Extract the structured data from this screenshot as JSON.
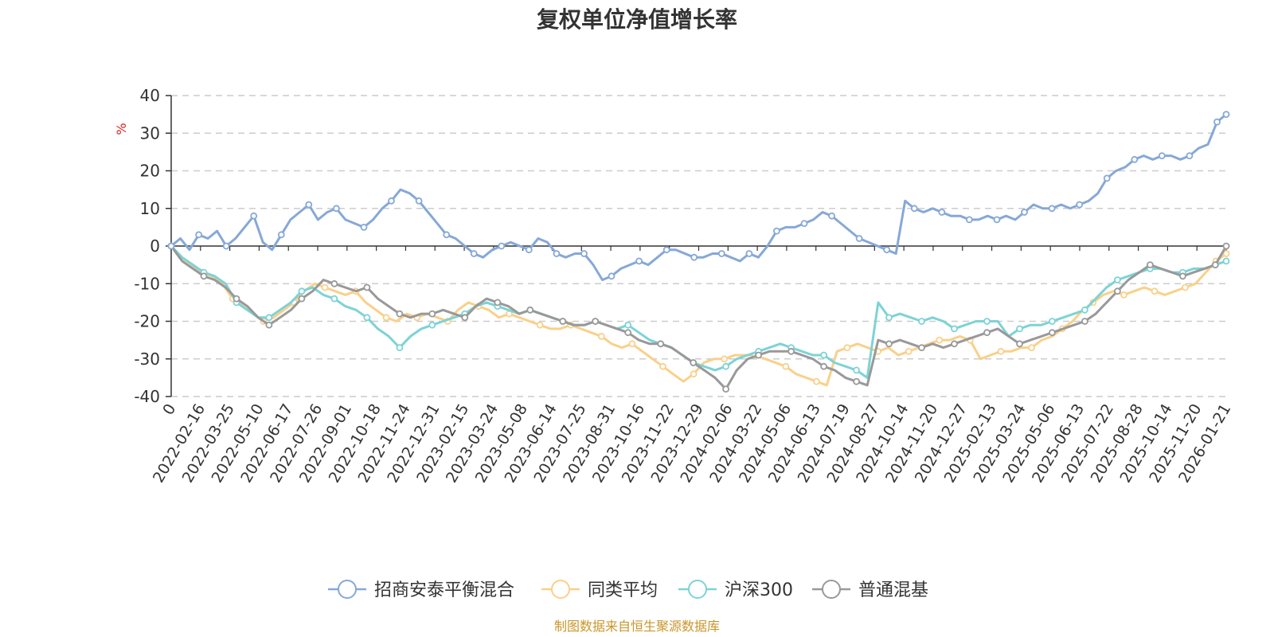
{
  "chart_data": {
    "type": "line",
    "title": "复权单位净值增长率",
    "ylabel": "%",
    "ylim": [
      -40,
      40
    ],
    "yticks": [
      40,
      30,
      20,
      10,
      0,
      -10,
      -20,
      -30,
      -40
    ],
    "grid": true,
    "legend_position": "bottom",
    "x_labels": [
      "0",
      "2022-02-16",
      "2022-03-25",
      "2022-05-10",
      "2022-06-17",
      "2022-07-26",
      "2022-09-01",
      "2022-10-18",
      "2022-11-24",
      "2022-12-31",
      "2023-02-15",
      "2023-03-24",
      "2023-05-08",
      "2023-06-14",
      "2023-07-25",
      "2023-08-31",
      "2023-10-16",
      "2023-11-22",
      "2023-12-29",
      "2024-02-06",
      "2024-03-22",
      "2024-05-06",
      "2024-06-13",
      "2024-07-19",
      "2024-08-27",
      "2024-10-14",
      "2024-11-20",
      "2024-12-27",
      "2025-02-13",
      "2025-03-24",
      "2025-05-06",
      "2025-06-13",
      "2025-07-22",
      "2025-08-28",
      "2025-10-14",
      "2025-11-20",
      "2026-01-21"
    ],
    "series": [
      {
        "name": "招商安泰平衡混合",
        "color": "#86a8d8",
        "values": [
          0,
          2,
          -1,
          3,
          2,
          4,
          0,
          2,
          5,
          8,
          1,
          -1,
          3,
          7,
          9,
          11,
          7,
          9,
          10,
          7,
          6,
          5,
          7,
          10,
          12,
          15,
          14,
          12,
          9,
          6,
          3,
          2,
          0,
          -2,
          -3,
          -1,
          0,
          1,
          0,
          -1,
          2,
          1,
          -2,
          -3,
          -2,
          -2,
          -5,
          -9,
          -8,
          -6,
          -5,
          -4,
          -5,
          -3,
          -1,
          -1,
          -2,
          -3,
          -3,
          -2,
          -2,
          -3,
          -4,
          -2,
          -3,
          0,
          4,
          5,
          5,
          6,
          7,
          9,
          8,
          6,
          4,
          2,
          1,
          0,
          -1,
          -2,
          12,
          10,
          9,
          10,
          9,
          8,
          8,
          7,
          7,
          8,
          7,
          8,
          7,
          9,
          11,
          10,
          10,
          11,
          10,
          11,
          12,
          14,
          18,
          20,
          21,
          23,
          24,
          23,
          24,
          24,
          23,
          24,
          26,
          27,
          33,
          35
        ]
      },
      {
        "name": "同类平均",
        "color": "#f9d08a",
        "values": [
          0,
          -3,
          -5,
          -7,
          -8,
          -10,
          -14,
          -16,
          -18,
          -20,
          -19,
          -17,
          -15,
          -12,
          -10,
          -11,
          -12,
          -13,
          -12,
          -15,
          -17,
          -19,
          -20,
          -18,
          -19,
          -18,
          -19,
          -20,
          -17,
          -15,
          -16,
          -17,
          -19,
          -18,
          -19,
          -20,
          -21,
          -22,
          -22,
          -21,
          -22,
          -23,
          -24,
          -26,
          -27,
          -26,
          -28,
          -30,
          -32,
          -34,
          -36,
          -34,
          -31,
          -30,
          -30,
          -29,
          -29,
          -29,
          -30,
          -31,
          -32,
          -34,
          -35,
          -36,
          -37,
          -28,
          -27,
          -26,
          -27,
          -28,
          -27,
          -29,
          -28,
          -27,
          -26,
          -25,
          -25,
          -24,
          -25,
          -30,
          -29,
          -28,
          -28,
          -27,
          -27,
          -25,
          -24,
          -22,
          -20,
          -17,
          -15,
          -13,
          -12,
          -13,
          -12,
          -11,
          -12,
          -13,
          -12,
          -11,
          -10,
          -7,
          -4,
          -2
        ]
      },
      {
        "name": "沪深300",
        "color": "#7dd3d6",
        "values": [
          0,
          -3,
          -5,
          -7,
          -8,
          -10,
          -15,
          -17,
          -19,
          -19,
          -17,
          -15,
          -12,
          -11,
          -13,
          -14,
          -16,
          -17,
          -19,
          -22,
          -24,
          -27,
          -24,
          -22,
          -21,
          -20,
          -19,
          -18,
          -16,
          -15,
          -16,
          -17,
          -18,
          -17,
          -18,
          -19,
          -20,
          -21,
          -21,
          -20,
          -21,
          -22,
          -21,
          -23,
          -25,
          -26,
          -27,
          -29,
          -31,
          -32,
          -33,
          -32,
          -30,
          -29,
          -28,
          -27,
          -26,
          -27,
          -28,
          -29,
          -29,
          -31,
          -32,
          -33,
          -35,
          -15,
          -19,
          -18,
          -19,
          -20,
          -19,
          -20,
          -22,
          -21,
          -20,
          -20,
          -20,
          -24,
          -22,
          -21,
          -21,
          -20,
          -19,
          -18,
          -17,
          -14,
          -11,
          -9,
          -8,
          -7,
          -6,
          -6,
          -7,
          -7,
          -6,
          -6,
          -5,
          -4
        ]
      },
      {
        "name": "普通混基",
        "color": "#999999",
        "values": [
          0,
          -4,
          -6,
          -8,
          -9,
          -11,
          -14,
          -16,
          -19,
          -21,
          -19,
          -17,
          -14,
          -12,
          -9,
          -10,
          -11,
          -12,
          -11,
          -14,
          -16,
          -18,
          -19,
          -18,
          -18,
          -17,
          -18,
          -19,
          -16,
          -14,
          -15,
          -16,
          -18,
          -17,
          -18,
          -19,
          -20,
          -21,
          -21,
          -20,
          -21,
          -22,
          -23,
          -25,
          -26,
          -26,
          -27,
          -29,
          -31,
          -33,
          -35,
          -38,
          -33,
          -30,
          -29,
          -28,
          -28,
          -28,
          -29,
          -30,
          -32,
          -33,
          -35,
          -36,
          -37,
          -25,
          -26,
          -25,
          -26,
          -27,
          -26,
          -27,
          -26,
          -25,
          -24,
          -23,
          -22,
          -24,
          -26,
          -25,
          -24,
          -23,
          -22,
          -21,
          -20,
          -18,
          -15,
          -12,
          -9,
          -7,
          -5,
          -6,
          -7,
          -8,
          -7,
          -6,
          -5,
          0
        ]
      }
    ]
  },
  "legend": {
    "items": [
      "招商安泰平衡混合",
      "同类平均",
      "沪深300",
      "普通混基"
    ]
  },
  "source": "制图数据来自恒生聚源数据库"
}
